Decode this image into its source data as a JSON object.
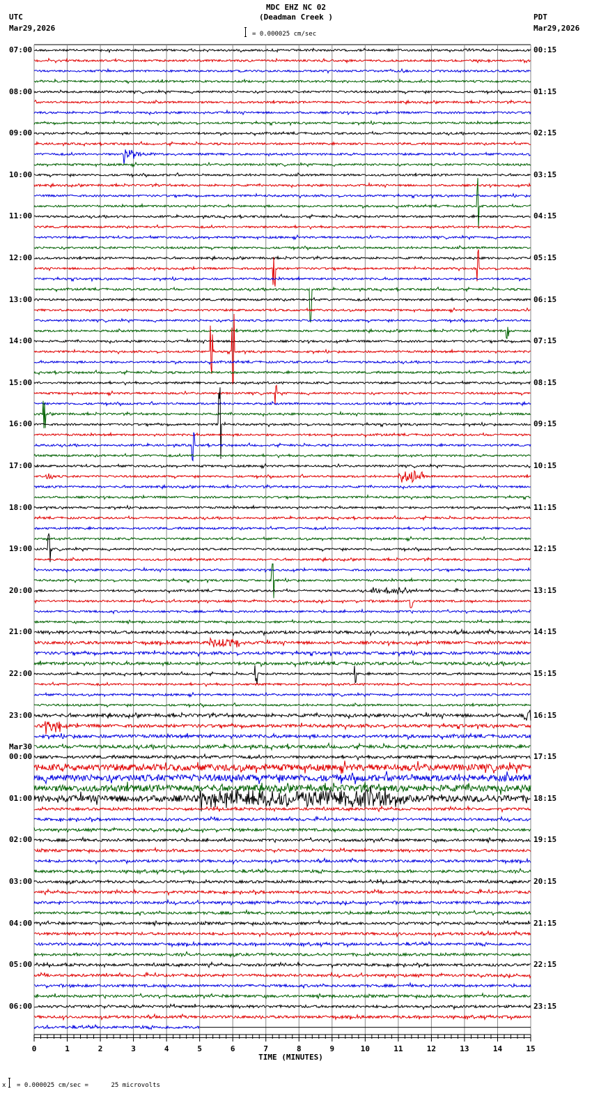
{
  "header": {
    "station_line": "MDC EHZ NC 02",
    "station_name": "(Deadman Creek )",
    "scale_text": "= 0.000025 cm/sec",
    "left_tz": "UTC",
    "left_date": "Mar29,2026",
    "right_tz": "PDT",
    "right_date": "Mar29,2026"
  },
  "footer": {
    "scale_note": "= 0.000025 cm/sec =      25 microvolts",
    "scale_prefix": "x"
  },
  "colors": {
    "trace_cycle": [
      "#000000",
      "#e00000",
      "#0000e0",
      "#006000"
    ],
    "grid": "#888888",
    "axis": "#000000"
  },
  "chart_data": {
    "type": "line",
    "title": "MDC EHZ NC 02 (Deadman Creek )",
    "subtitle": "= 0.000025 cm/sec",
    "xlabel": "TIME (MINUTES)",
    "ylabel": "",
    "xlim": [
      0,
      15
    ],
    "x_ticks": [
      0,
      1,
      2,
      3,
      4,
      5,
      6,
      7,
      8,
      9,
      10,
      11,
      12,
      13,
      14,
      15
    ],
    "minor_tick_step": 0.2,
    "grid": true,
    "rows_per_hour": 4,
    "row_minutes": 15,
    "total_rows": 96,
    "last_data_row": 94,
    "last_row_end_minute": 5.0,
    "utc_hour_labels": [
      {
        "row": 0,
        "label": "07:00"
      },
      {
        "row": 4,
        "label": "08:00"
      },
      {
        "row": 8,
        "label": "09:00"
      },
      {
        "row": 12,
        "label": "10:00"
      },
      {
        "row": 16,
        "label": "11:00"
      },
      {
        "row": 20,
        "label": "12:00"
      },
      {
        "row": 24,
        "label": "13:00"
      },
      {
        "row": 28,
        "label": "14:00"
      },
      {
        "row": 32,
        "label": "15:00"
      },
      {
        "row": 36,
        "label": "16:00"
      },
      {
        "row": 40,
        "label": "17:00"
      },
      {
        "row": 44,
        "label": "18:00"
      },
      {
        "row": 48,
        "label": "19:00"
      },
      {
        "row": 52,
        "label": "20:00"
      },
      {
        "row": 56,
        "label": "21:00"
      },
      {
        "row": 60,
        "label": "22:00"
      },
      {
        "row": 64,
        "label": "23:00"
      },
      {
        "row": 68,
        "label": "00:00",
        "date_above": "Mar30"
      },
      {
        "row": 72,
        "label": "01:00"
      },
      {
        "row": 76,
        "label": "02:00"
      },
      {
        "row": 80,
        "label": "03:00"
      },
      {
        "row": 84,
        "label": "04:00"
      },
      {
        "row": 88,
        "label": "05:00"
      },
      {
        "row": 92,
        "label": "06:00"
      }
    ],
    "pdt_hour_labels": [
      "00:15",
      "01:15",
      "02:15",
      "03:15",
      "04:15",
      "05:15",
      "06:15",
      "07:15",
      "08:15",
      "09:15",
      "10:15",
      "11:15",
      "12:15",
      "13:15",
      "14:15",
      "15:15",
      "16:15",
      "17:15",
      "18:15",
      "19:15",
      "20:15",
      "21:15",
      "22:15",
      "23:15"
    ],
    "noise_levels": [
      {
        "rows": [
          0,
          67
        ],
        "amp": 1.4
      },
      {
        "rows": [
          56,
          59
        ],
        "amp": 2.0
      },
      {
        "rows": [
          64,
          67
        ],
        "amp": 2.2
      },
      {
        "rows": [
          68,
          68
        ],
        "amp": 2.0
      },
      {
        "rows": [
          69,
          71
        ],
        "amp": 4.5
      },
      {
        "rows": [
          72,
          72
        ],
        "amp": 4.5
      },
      {
        "rows": [
          73,
          95
        ],
        "amp": 1.8
      }
    ],
    "events": [
      {
        "row": 10,
        "minute": 2.7,
        "type": "quake",
        "amp": 18,
        "duration": 1.3
      },
      {
        "row": 15,
        "minute": 13.4,
        "type": "spike",
        "amp": 40,
        "duration": 0.1
      },
      {
        "row": 21,
        "minute": 13.4,
        "type": "spike",
        "amp": 35,
        "duration": 0.1
      },
      {
        "row": 21,
        "minute": 7.25,
        "type": "spike",
        "amp": 30,
        "duration": 0.1
      },
      {
        "row": 23,
        "minute": 8.35,
        "type": "spike",
        "amp": 60,
        "duration": 0.1
      },
      {
        "row": 27,
        "minute": 14.3,
        "type": "spike",
        "amp": 10,
        "duration": 0.1
      },
      {
        "row": 29,
        "minute": 5.35,
        "type": "spike",
        "amp": 45,
        "duration": 0.1
      },
      {
        "row": 29,
        "minute": 6.0,
        "type": "spike",
        "amp": 55,
        "duration": 0.1
      },
      {
        "row": 33,
        "minute": 7.3,
        "type": "spike",
        "amp": 20,
        "duration": 0.1
      },
      {
        "row": 35,
        "minute": 0.3,
        "type": "spike",
        "amp": 25,
        "duration": 0.2
      },
      {
        "row": 36,
        "minute": 5.6,
        "type": "spike",
        "amp": 60,
        "duration": 0.2
      },
      {
        "row": 38,
        "minute": 4.8,
        "type": "spike",
        "amp": 22,
        "duration": 0.1
      },
      {
        "row": 41,
        "minute": 0.3,
        "type": "burst",
        "amp": 5,
        "duration": 0.3
      },
      {
        "row": 41,
        "minute": 11.0,
        "type": "burst",
        "amp": 8,
        "duration": 0.8
      },
      {
        "row": 48,
        "minute": 0.45,
        "type": "spike",
        "amp": 30,
        "duration": 0.4
      },
      {
        "row": 51,
        "minute": 7.2,
        "type": "spike",
        "amp": 25,
        "duration": 0.1
      },
      {
        "row": 52,
        "minute": 10.2,
        "type": "burst",
        "amp": 4,
        "duration": 1.2
      },
      {
        "row": 53,
        "minute": 11.4,
        "type": "spike",
        "amp": 12,
        "duration": 0.1
      },
      {
        "row": 57,
        "minute": 5.3,
        "type": "burst",
        "amp": 6,
        "duration": 0.9
      },
      {
        "row": 60,
        "minute": 6.7,
        "type": "spike",
        "amp": 14,
        "duration": 0.1
      },
      {
        "row": 60,
        "minute": 9.7,
        "type": "spike",
        "amp": 16,
        "duration": 0.1
      },
      {
        "row": 64,
        "minute": 14.8,
        "type": "burst",
        "amp": 8,
        "duration": 0.3
      },
      {
        "row": 65,
        "minute": 0.3,
        "type": "burst",
        "amp": 8,
        "duration": 0.5
      },
      {
        "row": 72,
        "minute": 5.0,
        "type": "burst",
        "amp": 10,
        "duration": 6.0
      }
    ]
  }
}
